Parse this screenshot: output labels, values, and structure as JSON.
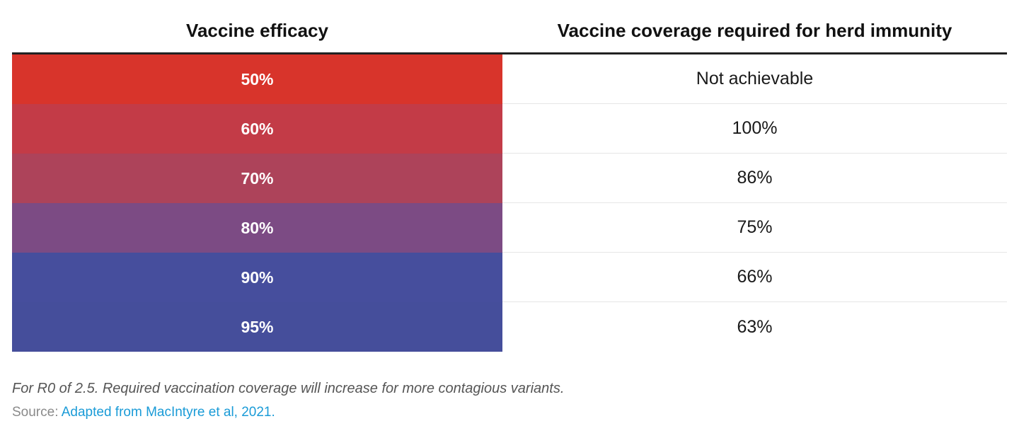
{
  "chart_data": {
    "type": "table",
    "columns": [
      "Vaccine efficacy",
      "Vaccine coverage required for herd immunity"
    ],
    "rows": [
      {
        "efficacy": "50%",
        "coverage": "Not achievable",
        "color": "#d8342b"
      },
      {
        "efficacy": "60%",
        "coverage": "100%",
        "color": "#c33b47"
      },
      {
        "efficacy": "70%",
        "coverage": "86%",
        "color": "#ad435a"
      },
      {
        "efficacy": "80%",
        "coverage": "75%",
        "color": "#7c4b84"
      },
      {
        "efficacy": "90%",
        "coverage": "66%",
        "color": "#464e9d"
      },
      {
        "efficacy": "95%",
        "coverage": "63%",
        "color": "#454e9b"
      }
    ]
  },
  "footer": {
    "note": "For R0 of 2.5. Required vaccination coverage will increase for more contagious variants.",
    "source_label": "Source: ",
    "source_link": "Adapted from MacIntyre et al, 2021."
  }
}
